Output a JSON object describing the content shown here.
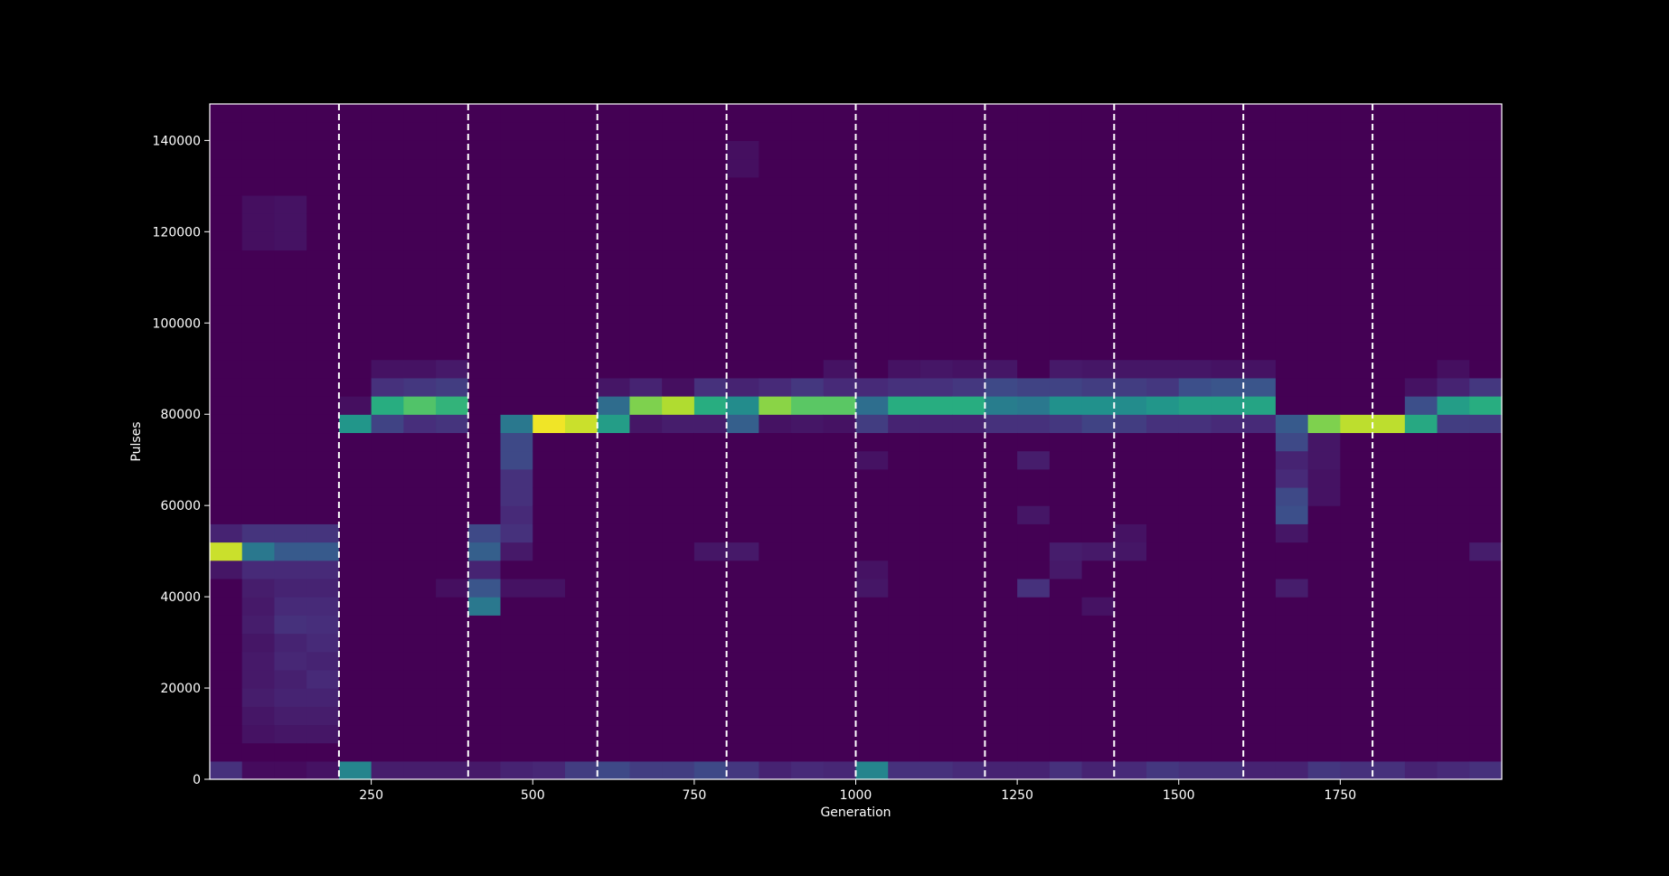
{
  "background_color": "#000000",
  "chart_data": {
    "type": "heatmap",
    "title": "",
    "xlabel": "Generation",
    "ylabel": "Pulses",
    "xlim": [
      0,
      2000
    ],
    "ylim": [
      0,
      148000
    ],
    "x_ticks": [
      250,
      500,
      750,
      1000,
      1250,
      1500,
      1750
    ],
    "y_ticks": [
      0,
      20000,
      40000,
      60000,
      80000,
      100000,
      120000,
      140000
    ],
    "x_bin_edges": [
      0,
      50,
      100,
      150,
      200,
      250,
      300,
      350,
      400,
      450,
      500,
      550,
      600,
      650,
      700,
      750,
      800,
      850,
      900,
      950,
      1000,
      1050,
      1100,
      1150,
      1200,
      1250,
      1300,
      1350,
      1400,
      1450,
      1500,
      1550,
      1600,
      1650,
      1700,
      1750,
      1800,
      1850,
      1900,
      1950,
      2000
    ],
    "y_bin_size": 4000,
    "y_bin_count": 37,
    "vertical_dashed_lines": [
      200,
      400,
      600,
      800,
      1000,
      1200,
      1400,
      1600,
      1800
    ],
    "colormap": "viridis",
    "grid": false,
    "columns": [
      {
        "cells": [
          [
            0,
            0.14
          ],
          [
            12,
            0.92
          ],
          [
            13,
            0.1
          ],
          [
            11,
            0.06
          ]
        ]
      },
      {
        "cells": [
          [
            0,
            0.03
          ],
          [
            12,
            0.4
          ],
          [
            13,
            0.15
          ],
          [
            11,
            0.12
          ],
          [
            10,
            0.08
          ],
          [
            9,
            0.07
          ],
          [
            8,
            0.08
          ],
          [
            7,
            0.06
          ],
          [
            6,
            0.07
          ],
          [
            5,
            0.07
          ],
          [
            4,
            0.08
          ],
          [
            3,
            0.06
          ],
          [
            2,
            0.05
          ],
          [
            29,
            0.04
          ],
          [
            30,
            0.04
          ],
          [
            31,
            0.04
          ]
        ]
      },
      {
        "cells": [
          [
            0,
            0.03
          ],
          [
            12,
            0.28
          ],
          [
            13,
            0.15
          ],
          [
            11,
            0.12
          ],
          [
            10,
            0.1
          ],
          [
            9,
            0.12
          ],
          [
            8,
            0.14
          ],
          [
            7,
            0.1
          ],
          [
            6,
            0.11
          ],
          [
            5,
            0.09
          ],
          [
            4,
            0.1
          ],
          [
            3,
            0.08
          ],
          [
            2,
            0.06
          ],
          [
            29,
            0.05
          ],
          [
            30,
            0.05
          ],
          [
            31,
            0.05
          ]
        ]
      },
      {
        "cells": [
          [
            0,
            0.05
          ],
          [
            12,
            0.28
          ],
          [
            13,
            0.15
          ],
          [
            11,
            0.12
          ],
          [
            10,
            0.1
          ],
          [
            9,
            0.12
          ],
          [
            8,
            0.13
          ],
          [
            7,
            0.12
          ],
          [
            6,
            0.1
          ],
          [
            5,
            0.12
          ],
          [
            4,
            0.1
          ],
          [
            3,
            0.08
          ],
          [
            2,
            0.06
          ]
        ]
      },
      {
        "cells": [
          [
            0,
            0.45
          ],
          [
            19,
            0.52
          ],
          [
            20,
            0.04
          ]
        ]
      },
      {
        "cells": [
          [
            0,
            0.08
          ],
          [
            19,
            0.2
          ],
          [
            20,
            0.62
          ],
          [
            21,
            0.14
          ],
          [
            22,
            0.05
          ]
        ]
      },
      {
        "cells": [
          [
            0,
            0.08
          ],
          [
            19,
            0.13
          ],
          [
            20,
            0.72
          ],
          [
            21,
            0.16
          ],
          [
            22,
            0.05
          ]
        ]
      },
      {
        "cells": [
          [
            0,
            0.08
          ],
          [
            19,
            0.15
          ],
          [
            20,
            0.65
          ],
          [
            21,
            0.18
          ],
          [
            22,
            0.07
          ],
          [
            10,
            0.04
          ]
        ]
      },
      {
        "cells": [
          [
            0,
            0.07
          ],
          [
            13,
            0.22
          ],
          [
            12,
            0.3
          ],
          [
            11,
            0.1
          ],
          [
            10,
            0.26
          ],
          [
            9,
            0.4
          ]
        ]
      },
      {
        "cells": [
          [
            0,
            0.1
          ],
          [
            19,
            0.4
          ],
          [
            18,
            0.22
          ],
          [
            17,
            0.22
          ],
          [
            16,
            0.14
          ],
          [
            15,
            0.14
          ],
          [
            14,
            0.12
          ],
          [
            13,
            0.14
          ],
          [
            12,
            0.07
          ],
          [
            10,
            0.05
          ]
        ]
      },
      {
        "cells": [
          [
            0,
            0.11
          ],
          [
            19,
            0.98
          ],
          [
            10,
            0.05
          ]
        ]
      },
      {
        "cells": [
          [
            0,
            0.18
          ],
          [
            19,
            0.92
          ]
        ]
      },
      {
        "cells": [
          [
            0,
            0.22
          ],
          [
            19,
            0.55
          ],
          [
            20,
            0.35
          ],
          [
            21,
            0.06
          ]
        ]
      },
      {
        "cells": [
          [
            0,
            0.18
          ],
          [
            19,
            0.06
          ],
          [
            20,
            0.8
          ],
          [
            21,
            0.1
          ]
        ]
      },
      {
        "cells": [
          [
            0,
            0.18
          ],
          [
            19,
            0.08
          ],
          [
            20,
            0.88
          ],
          [
            21,
            0.04
          ]
        ]
      },
      {
        "cells": [
          [
            0,
            0.22
          ],
          [
            19,
            0.08
          ],
          [
            20,
            0.62
          ],
          [
            21,
            0.14
          ],
          [
            12,
            0.06
          ]
        ]
      },
      {
        "cells": [
          [
            0,
            0.16
          ],
          [
            19,
            0.3
          ],
          [
            20,
            0.48
          ],
          [
            21,
            0.1
          ],
          [
            12,
            0.07
          ],
          [
            33,
            0.04
          ],
          [
            34,
            0.04
          ]
        ]
      },
      {
        "cells": [
          [
            0,
            0.1
          ],
          [
            19,
            0.05
          ],
          [
            20,
            0.82
          ],
          [
            21,
            0.12
          ]
        ]
      },
      {
        "cells": [
          [
            0,
            0.12
          ],
          [
            19,
            0.06
          ],
          [
            20,
            0.74
          ],
          [
            21,
            0.16
          ]
        ]
      },
      {
        "cells": [
          [
            0,
            0.11
          ],
          [
            19,
            0.05
          ],
          [
            20,
            0.74
          ],
          [
            21,
            0.12
          ],
          [
            22,
            0.05
          ]
        ]
      },
      {
        "cells": [
          [
            0,
            0.45
          ],
          [
            19,
            0.18
          ],
          [
            20,
            0.36
          ],
          [
            21,
            0.12
          ],
          [
            17,
            0.05
          ],
          [
            10,
            0.06
          ],
          [
            11,
            0.05
          ]
        ]
      },
      {
        "cells": [
          [
            0,
            0.14
          ],
          [
            19,
            0.1
          ],
          [
            20,
            0.62
          ],
          [
            21,
            0.14
          ],
          [
            22,
            0.05
          ]
        ]
      },
      {
        "cells": [
          [
            0,
            0.14
          ],
          [
            19,
            0.1
          ],
          [
            20,
            0.62
          ],
          [
            21,
            0.14
          ],
          [
            22,
            0.06
          ]
        ]
      },
      {
        "cells": [
          [
            0,
            0.12
          ],
          [
            19,
            0.1
          ],
          [
            20,
            0.62
          ],
          [
            21,
            0.16
          ],
          [
            22,
            0.05
          ]
        ]
      },
      {
        "cells": [
          [
            0,
            0.1
          ],
          [
            19,
            0.14
          ],
          [
            20,
            0.42
          ],
          [
            21,
            0.22
          ],
          [
            22,
            0.06
          ]
        ]
      },
      {
        "cells": [
          [
            0,
            0.1
          ],
          [
            19,
            0.14
          ],
          [
            20,
            0.4
          ],
          [
            21,
            0.2
          ],
          [
            17,
            0.08
          ],
          [
            14,
            0.06
          ],
          [
            10,
            0.14
          ]
        ]
      },
      {
        "cells": [
          [
            0,
            0.14
          ],
          [
            19,
            0.16
          ],
          [
            20,
            0.5
          ],
          [
            21,
            0.2
          ],
          [
            22,
            0.07
          ],
          [
            12,
            0.08
          ],
          [
            11,
            0.07
          ]
        ]
      },
      {
        "cells": [
          [
            0,
            0.1
          ],
          [
            19,
            0.2
          ],
          [
            20,
            0.5
          ],
          [
            21,
            0.18
          ],
          [
            22,
            0.06
          ],
          [
            12,
            0.07
          ],
          [
            9,
            0.05
          ]
        ]
      },
      {
        "cells": [
          [
            0,
            0.12
          ],
          [
            19,
            0.18
          ],
          [
            20,
            0.48
          ],
          [
            21,
            0.18
          ],
          [
            22,
            0.06
          ],
          [
            13,
            0.05
          ],
          [
            12,
            0.06
          ]
        ]
      },
      {
        "cells": [
          [
            0,
            0.16
          ],
          [
            19,
            0.14
          ],
          [
            20,
            0.52
          ],
          [
            21,
            0.16
          ],
          [
            22,
            0.06
          ]
        ]
      },
      {
        "cells": [
          [
            0,
            0.14
          ],
          [
            19,
            0.14
          ],
          [
            20,
            0.56
          ],
          [
            21,
            0.24
          ],
          [
            22,
            0.06
          ]
        ]
      },
      {
        "cells": [
          [
            0,
            0.14
          ],
          [
            19,
            0.12
          ],
          [
            20,
            0.56
          ],
          [
            21,
            0.26
          ],
          [
            22,
            0.05
          ]
        ]
      },
      {
        "cells": [
          [
            0,
            0.1
          ],
          [
            19,
            0.12
          ],
          [
            20,
            0.58
          ],
          [
            21,
            0.26
          ],
          [
            22,
            0.05
          ]
        ]
      },
      {
        "cells": [
          [
            0,
            0.1
          ],
          [
            19,
            0.28
          ],
          [
            18,
            0.22
          ],
          [
            17,
            0.1
          ],
          [
            16,
            0.12
          ],
          [
            15,
            0.22
          ],
          [
            14,
            0.24
          ],
          [
            13,
            0.06
          ],
          [
            10,
            0.08
          ]
        ]
      },
      {
        "cells": [
          [
            0,
            0.16
          ],
          [
            19,
            0.8
          ],
          [
            18,
            0.06
          ],
          [
            17,
            0.06
          ],
          [
            16,
            0.05
          ],
          [
            15,
            0.05
          ]
        ]
      },
      {
        "cells": [
          [
            0,
            0.14
          ],
          [
            19,
            0.9
          ]
        ]
      },
      {
        "cells": [
          [
            0,
            0.14
          ],
          [
            19,
            0.9
          ]
        ]
      },
      {
        "cells": [
          [
            0,
            0.1
          ],
          [
            19,
            0.6
          ],
          [
            20,
            0.24
          ],
          [
            21,
            0.05
          ]
        ]
      },
      {
        "cells": [
          [
            0,
            0.12
          ],
          [
            19,
            0.18
          ],
          [
            20,
            0.55
          ],
          [
            21,
            0.1
          ],
          [
            22,
            0.04
          ]
        ]
      },
      {
        "cells": [
          [
            0,
            0.14
          ],
          [
            19,
            0.18
          ],
          [
            20,
            0.62
          ],
          [
            21,
            0.16
          ],
          [
            12,
            0.08
          ]
        ]
      }
    ]
  }
}
